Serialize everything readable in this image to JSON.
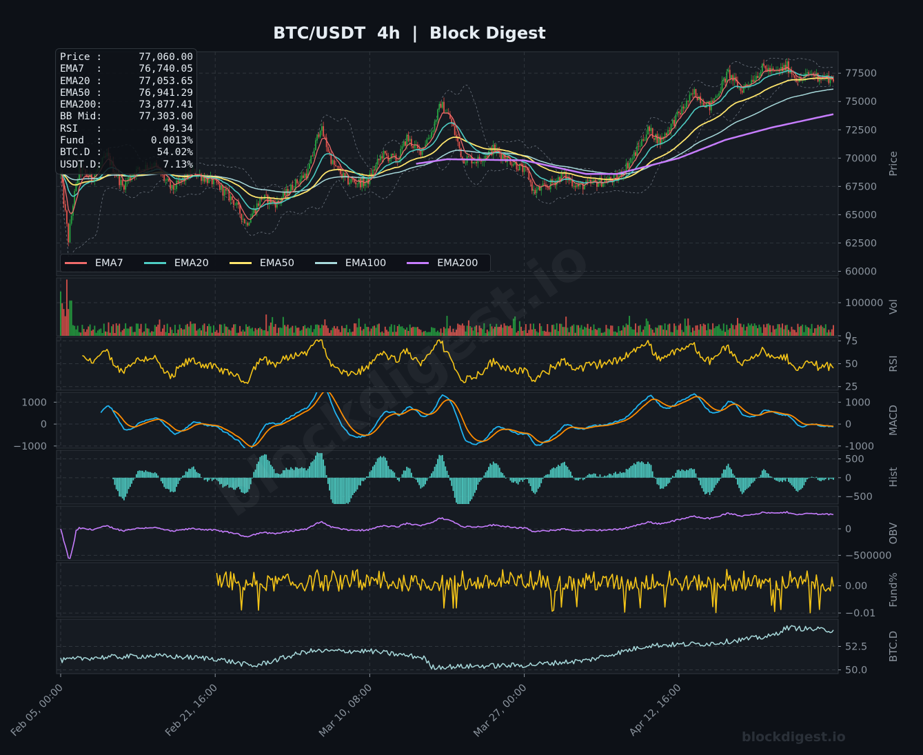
{
  "title": "BTC/USDT  4h  |  Block Digest",
  "watermark_bottom": "blockdigest.io",
  "watermark_diagonal": "blockdigest.io",
  "colors": {
    "background": "#0d1117",
    "panel": "#161b22",
    "grid": "#30363d",
    "text": "#e6edf3",
    "axis_text": "#8b949e",
    "candle_up": "#26a641",
    "candle_down": "#e5534b",
    "ema7": "#f06b6b",
    "ema20": "#4ecdc4",
    "ema50": "#ffe66d",
    "ema100": "#a8dadc",
    "ema200": "#c77dff",
    "rsi": "#f5c518",
    "macd": "#1fb3f0",
    "signal": "#ff8c00",
    "hist": "#4ecdc4",
    "obv": "#c77dff",
    "funding": "#f5c518",
    "btcd": "#a8dadc"
  },
  "info_box": [
    {
      "label": "Price :",
      "value": "77,060.00"
    },
    {
      "label": "EMA7  :",
      "value": "76,740.05"
    },
    {
      "label": "EMA20 :",
      "value": "77,053.65"
    },
    {
      "label": "EMA50 :",
      "value": "76,941.29"
    },
    {
      "label": "EMA200:",
      "value": "73,877.41"
    },
    {
      "label": "BB Mid:",
      "value": "77,303.00"
    },
    {
      "label": "RSI   :",
      "value": "49.34"
    },
    {
      "label": "Fund  :",
      "value": "0.0013%"
    },
    {
      "label": "BTC.D :",
      "value": "54.02%"
    },
    {
      "label": "USDT.D:",
      "value": "7.13%"
    }
  ],
  "legend": [
    {
      "label": "EMA7",
      "color": "#f06b6b"
    },
    {
      "label": "EMA20",
      "color": "#4ecdc4"
    },
    {
      "label": "EMA50",
      "color": "#ffe66d"
    },
    {
      "label": "EMA100",
      "color": "#a8dadc"
    },
    {
      "label": "EMA200",
      "color": "#c77dff"
    }
  ],
  "chart_data": {
    "type": "line",
    "title": "BTC/USDT  4h  |  Block Digest",
    "x_ticks": [
      "Feb 05, 00:00",
      "Feb 21, 16:00",
      "Mar 10, 08:00",
      "Mar 27, 00:00",
      "Apr 12, 16:00"
    ],
    "x_range_bars": [
      0,
      500
    ],
    "x_tick_bars": [
      0,
      100,
      200,
      300,
      400
    ],
    "panels": [
      {
        "name": "price",
        "ylabel": "Price",
        "ylim": [
          59600,
          79400
        ],
        "yticks": [
          "60000",
          "62500",
          "65000",
          "67500",
          "70000",
          "72500",
          "75000",
          "77500"
        ],
        "ytick_values": [
          60000,
          62500,
          65000,
          67500,
          70000,
          72500,
          75000,
          77500
        ],
        "close_keypoints": [
          [
            0,
            68500
          ],
          [
            5,
            62800
          ],
          [
            8,
            66000
          ],
          [
            12,
            69000
          ],
          [
            20,
            68200
          ],
          [
            30,
            70200
          ],
          [
            40,
            67500
          ],
          [
            48,
            68800
          ],
          [
            60,
            69500
          ],
          [
            72,
            67200
          ],
          [
            85,
            68800
          ],
          [
            100,
            67800
          ],
          [
            112,
            66200
          ],
          [
            120,
            64200
          ],
          [
            130,
            66500
          ],
          [
            140,
            66000
          ],
          [
            150,
            67500
          ],
          [
            160,
            68800
          ],
          [
            168,
            72800
          ],
          [
            176,
            69500
          ],
          [
            185,
            68000
          ],
          [
            198,
            67800
          ],
          [
            208,
            70300
          ],
          [
            218,
            69800
          ],
          [
            224,
            71800
          ],
          [
            232,
            70500
          ],
          [
            240,
            72300
          ],
          [
            246,
            74800
          ],
          [
            252,
            73500
          ],
          [
            260,
            70000
          ],
          [
            270,
            69800
          ],
          [
            280,
            70800
          ],
          [
            294,
            69500
          ],
          [
            302,
            68700
          ],
          [
            306,
            67000
          ],
          [
            315,
            67500
          ],
          [
            325,
            68500
          ],
          [
            335,
            67500
          ],
          [
            346,
            67800
          ],
          [
            360,
            68200
          ],
          [
            370,
            70000
          ],
          [
            380,
            72500
          ],
          [
            388,
            71500
          ],
          [
            398,
            73500
          ],
          [
            410,
            75800
          ],
          [
            420,
            74500
          ],
          [
            432,
            77500
          ],
          [
            440,
            76000
          ],
          [
            455,
            78000
          ],
          [
            462,
            77500
          ],
          [
            470,
            78100
          ],
          [
            478,
            76800
          ],
          [
            485,
            77500
          ],
          [
            492,
            77100
          ],
          [
            500,
            77060
          ]
        ],
        "ema200_keypoints": [
          [
            230,
            69500
          ],
          [
            250,
            69900
          ],
          [
            300,
            69800
          ],
          [
            340,
            68600
          ],
          [
            360,
            68600
          ],
          [
            400,
            70000
          ],
          [
            430,
            71600
          ],
          [
            460,
            72700
          ],
          [
            500,
            73880
          ]
        ]
      },
      {
        "name": "volume",
        "ylabel": "Vol",
        "yticks": [
          "0",
          "100000"
        ],
        "ytick_values": [
          0,
          100000
        ],
        "ylim": [
          0,
          175000
        ]
      },
      {
        "name": "rsi",
        "ylabel": "RSI",
        "yticks": [
          "25",
          "50",
          "75"
        ],
        "ytick_values": [
          25,
          50,
          75
        ],
        "ylim": [
          21,
          79
        ]
      },
      {
        "name": "macd",
        "ylabel": "MACD",
        "yticks": [
          "-1000",
          "0",
          "1000"
        ],
        "ytick_values": [
          -1000,
          0,
          1000
        ],
        "left_yticks": [
          "−1000",
          "0",
          "1000"
        ],
        "ylim": [
          -1100,
          1450
        ]
      },
      {
        "name": "hist",
        "ylabel": "Hist",
        "yticks": [
          "−500",
          "0",
          "500"
        ],
        "ytick_values": [
          -500,
          0,
          500
        ],
        "ylim": [
          -700,
          730
        ]
      },
      {
        "name": "obv",
        "ylabel": "OBV",
        "yticks": [
          "−500000",
          "0"
        ],
        "ytick_values": [
          -500000,
          0
        ],
        "ylim": [
          -600000,
          430000
        ]
      },
      {
        "name": "funding",
        "ylabel": "Fund%",
        "yticks": [
          "−0.01",
          "0.00"
        ],
        "ytick_values": [
          -0.01,
          0.0
        ],
        "ylim": [
          -0.0115,
          0.0085
        ]
      },
      {
        "name": "btcd",
        "ylabel": "BTC.D",
        "yticks": [
          "50.0",
          "52.5"
        ],
        "ytick_values": [
          50.0,
          52.5
        ],
        "ylim": [
          49.6,
          55.4
        ]
      }
    ]
  }
}
